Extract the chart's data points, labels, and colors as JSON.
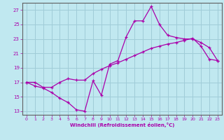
{
  "xlabel": "Windchill (Refroidissement éolien,°C)",
  "bg_color": "#c0e8f0",
  "grid_color": "#a0ccd8",
  "line_color": "#aa00aa",
  "xlim": [
    -0.5,
    23.5
  ],
  "ylim": [
    12.5,
    28.0
  ],
  "xticks": [
    0,
    1,
    2,
    3,
    4,
    5,
    6,
    7,
    8,
    9,
    10,
    11,
    12,
    13,
    14,
    15,
    16,
    17,
    18,
    19,
    20,
    21,
    22,
    23
  ],
  "yticks": [
    13,
    15,
    17,
    19,
    21,
    23,
    25,
    27
  ],
  "series1_x": [
    0,
    1,
    2,
    3,
    4,
    5,
    6,
    7,
    8,
    9,
    10,
    11,
    12,
    13,
    14,
    15,
    16,
    17,
    18,
    19,
    20,
    21,
    22,
    23
  ],
  "series1_y": [
    17.0,
    16.5,
    16.2,
    15.6,
    14.8,
    14.2,
    13.2,
    13.0,
    17.2,
    15.2,
    19.5,
    20.0,
    23.3,
    25.5,
    25.5,
    27.5,
    25.0,
    23.5,
    23.2,
    23.0,
    23.0,
    22.5,
    21.8,
    20.0
  ],
  "series2_x": [
    0,
    1,
    2,
    3,
    4,
    5,
    6,
    7,
    8,
    9,
    10,
    11,
    12,
    13,
    14,
    15,
    16,
    17,
    18,
    19,
    20,
    21,
    22,
    23
  ],
  "series2_y": [
    17.0,
    17.0,
    16.3,
    16.3,
    17.0,
    17.5,
    17.3,
    17.3,
    18.2,
    18.8,
    19.3,
    19.7,
    20.2,
    20.7,
    21.2,
    21.7,
    22.0,
    22.3,
    22.5,
    22.8,
    23.1,
    22.0,
    20.2,
    20.0
  ]
}
